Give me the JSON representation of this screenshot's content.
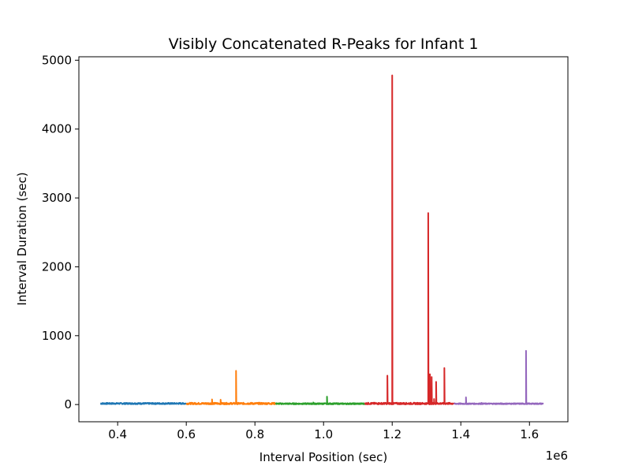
{
  "chart_data": {
    "type": "line",
    "title": "Visibly Concatenated R-Peaks for Infant 1",
    "xlabel": "Interval Position (sec)",
    "ylabel": "Interval Duration (sec)",
    "x_offset_label": "1e6",
    "xlim": [
      0.287,
      1.712
    ],
    "ylim": [
      -250,
      5050
    ],
    "x_ticks": [
      0.4,
      0.6,
      0.8,
      1.0,
      1.2,
      1.4,
      1.6
    ],
    "x_tick_labels": [
      "0.4",
      "0.6",
      "0.8",
      "1.0",
      "1.2",
      "1.4",
      "1.6"
    ],
    "y_ticks": [
      0,
      1000,
      2000,
      3000,
      4000,
      5000
    ],
    "y_tick_labels": [
      "0",
      "1000",
      "2000",
      "3000",
      "4000",
      "5000"
    ],
    "legend": false,
    "grid": false,
    "series": [
      {
        "color": "#1f77b4",
        "x_range": [
          0.35,
          0.6
        ],
        "baseline": 15,
        "noise": 20,
        "spikes": []
      },
      {
        "color": "#ff7f0e",
        "x_range": [
          0.6,
          0.86
        ],
        "baseline": 15,
        "noise": 25,
        "spikes": [
          [
            0.675,
            75
          ],
          [
            0.7,
            70
          ],
          [
            0.745,
            490
          ]
        ]
      },
      {
        "color": "#2ca02c",
        "x_range": [
          0.86,
          1.12
        ],
        "baseline": 12,
        "noise": 18,
        "spikes": [
          [
            1.01,
            115
          ],
          [
            0.97,
            30
          ]
        ]
      },
      {
        "color": "#d62728",
        "x_range": [
          1.12,
          1.38
        ],
        "baseline": 15,
        "noise": 25,
        "spikes": [
          [
            1.186,
            420
          ],
          [
            1.2,
            4780
          ],
          [
            1.305,
            2780
          ],
          [
            1.31,
            440
          ],
          [
            1.315,
            400
          ],
          [
            1.328,
            330
          ],
          [
            1.352,
            530
          ],
          [
            1.322,
            80
          ]
        ]
      },
      {
        "color": "#9467bd",
        "x_range": [
          1.38,
          1.64
        ],
        "baseline": 12,
        "noise": 15,
        "spikes": [
          [
            1.415,
            105
          ],
          [
            1.46,
            25
          ],
          [
            1.59,
            780
          ]
        ]
      }
    ]
  }
}
